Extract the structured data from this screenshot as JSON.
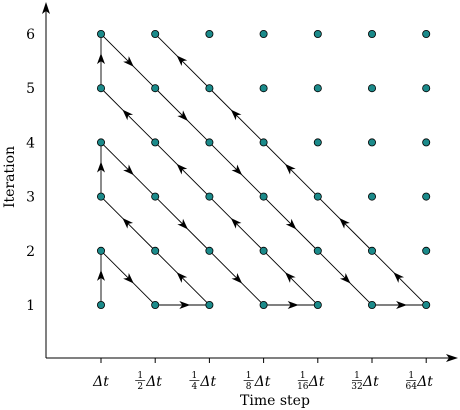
{
  "diagram": {
    "y_axis_label": "Iteration",
    "x_axis_label": "Time step",
    "y_ticks": [
      "1",
      "2",
      "3",
      "4",
      "5",
      "6"
    ],
    "x_ticks": [
      {
        "coef": "",
        "den": "",
        "sym": "Δt"
      },
      {
        "coef": "1",
        "den": "2",
        "sym": "Δt"
      },
      {
        "coef": "1",
        "den": "4",
        "sym": "Δt"
      },
      {
        "coef": "1",
        "den": "8",
        "sym": "Δt"
      },
      {
        "coef": "1",
        "den": "16",
        "sym": "Δt"
      },
      {
        "coef": "1",
        "den": "32",
        "sym": "Δt"
      },
      {
        "coef": "1",
        "den": "64",
        "sym": "Δt"
      }
    ],
    "node_color": "#1b8a8a",
    "grid_columns": 7,
    "grid_rows": 6,
    "path": [
      [
        0,
        1
      ],
      [
        0,
        2
      ],
      [
        1,
        1
      ],
      [
        2,
        1
      ],
      [
        1,
        2
      ],
      [
        0,
        3
      ],
      [
        0,
        4
      ],
      [
        1,
        3
      ],
      [
        2,
        2
      ],
      [
        3,
        1
      ],
      [
        4,
        1
      ],
      [
        3,
        2
      ],
      [
        2,
        3
      ],
      [
        1,
        4
      ],
      [
        0,
        5
      ],
      [
        0,
        6
      ],
      [
        1,
        5
      ],
      [
        2,
        4
      ],
      [
        3,
        3
      ],
      [
        4,
        2
      ],
      [
        5,
        1
      ],
      [
        6,
        1
      ],
      [
        5,
        2
      ],
      [
        4,
        3
      ],
      [
        3,
        4
      ],
      [
        2,
        5
      ],
      [
        1,
        6
      ]
    ]
  }
}
